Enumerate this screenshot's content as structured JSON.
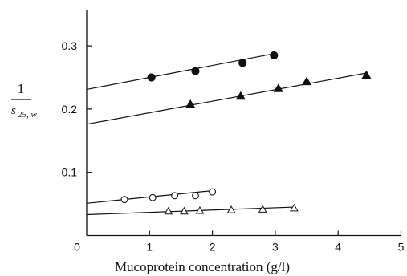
{
  "chart_data": {
    "type": "scatter",
    "xlabel": "Mucoprotein concentration (g/l)",
    "ylabel": {
      "numerator": "1",
      "denominator": "s",
      "subscript": "25, w"
    },
    "xlim": [
      0,
      5
    ],
    "ylim": [
      0,
      0.35
    ],
    "xticks": [
      "0",
      "1",
      "2",
      "3",
      "4",
      "5"
    ],
    "yticks": [
      "0.1",
      "0.2",
      "0.3"
    ],
    "grid": false,
    "series": [
      {
        "marker": "filled-circle",
        "x": [
          1.03,
          1.73,
          2.48,
          2.98
        ],
        "y": [
          0.25,
          0.26,
          0.273,
          0.285
        ],
        "fit": {
          "x": [
            0,
            3.0
          ],
          "y": [
            0.231,
            0.288
          ]
        }
      },
      {
        "marker": "filled-triangle",
        "x": [
          1.65,
          2.45,
          3.05,
          3.5,
          4.45
        ],
        "y": [
          0.207,
          0.22,
          0.232,
          0.243,
          0.253
        ],
        "fit": {
          "x": [
            0,
            4.45
          ],
          "y": [
            0.176,
            0.257
          ]
        }
      },
      {
        "marker": "open-circle",
        "x": [
          0.6,
          1.05,
          1.4,
          1.73,
          2.0
        ],
        "y": [
          0.057,
          0.06,
          0.063,
          0.063,
          0.069
        ],
        "fit": {
          "x": [
            0,
            2.0
          ],
          "y": [
            0.051,
            0.071
          ]
        }
      },
      {
        "marker": "open-triangle",
        "x": [
          1.3,
          1.55,
          1.8,
          2.3,
          2.8,
          3.3
        ],
        "y": [
          0.038,
          0.038,
          0.039,
          0.04,
          0.041,
          0.043
        ],
        "fit": {
          "x": [
            0,
            3.3
          ],
          "y": [
            0.033,
            0.045
          ]
        }
      }
    ]
  }
}
